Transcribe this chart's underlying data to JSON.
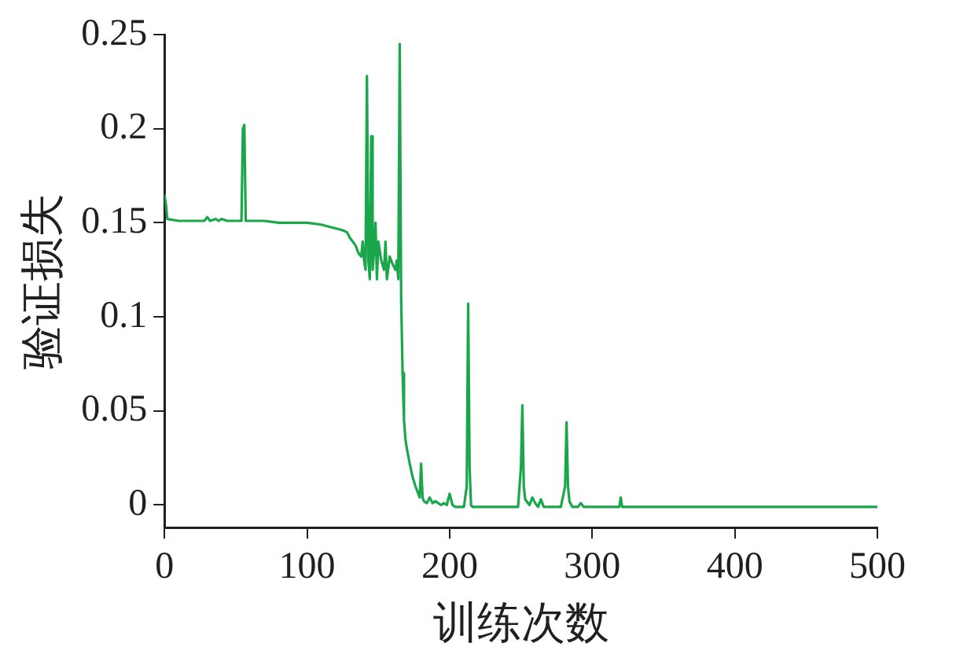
{
  "chart_data": {
    "type": "line",
    "xlabel": "训练次数",
    "ylabel": "验证损失",
    "xlim": [
      0,
      500
    ],
    "xticks": [
      0,
      100,
      200,
      300,
      400,
      500
    ],
    "ylim": [
      -0.012,
      0.25
    ],
    "yticks": [
      0,
      0.05,
      0.1,
      0.15,
      0.2,
      0.25
    ],
    "grid": false,
    "legend": false,
    "marker": "none",
    "line_style": "solid",
    "series": [
      {
        "color": "#1aa64a",
        "x": [
          0,
          1,
          2,
          10,
          20,
          28,
          30,
          32,
          36,
          38,
          40,
          44,
          50,
          54,
          55,
          56,
          57,
          60,
          70,
          80,
          90,
          100,
          110,
          115,
          120,
          125,
          128,
          130,
          132,
          134,
          136,
          138,
          139,
          140,
          141,
          142,
          143,
          144,
          145,
          146,
          147,
          148,
          149,
          150,
          152,
          154,
          155,
          156,
          158,
          160,
          162,
          163,
          164,
          165,
          166,
          167,
          168,
          169,
          170,
          172,
          174,
          176,
          178,
          179,
          180,
          181,
          182,
          184,
          186,
          188,
          190,
          192,
          194,
          196,
          198,
          200,
          202,
          204,
          210,
          212,
          213,
          214,
          215,
          216,
          220,
          230,
          240,
          248,
          250,
          251,
          252,
          253,
          256,
          258,
          260,
          262,
          264,
          266,
          270,
          278,
          281,
          282,
          283,
          284,
          286,
          290,
          292,
          294,
          296,
          300,
          310,
          319,
          320,
          321,
          322,
          330,
          400,
          500
        ],
        "values": [
          0.165,
          0.16,
          0.152,
          0.151,
          0.151,
          0.151,
          0.153,
          0.151,
          0.152,
          0.151,
          0.152,
          0.151,
          0.151,
          0.151,
          0.2,
          0.202,
          0.151,
          0.151,
          0.151,
          0.15,
          0.15,
          0.15,
          0.149,
          0.148,
          0.147,
          0.146,
          0.145,
          0.142,
          0.14,
          0.138,
          0.134,
          0.132,
          0.14,
          0.13,
          0.125,
          0.228,
          0.13,
          0.12,
          0.196,
          0.125,
          0.135,
          0.15,
          0.12,
          0.14,
          0.13,
          0.125,
          0.14,
          0.12,
          0.132,
          0.128,
          0.125,
          0.13,
          0.12,
          0.245,
          0.11,
          0.07,
          0.045,
          0.035,
          0.03,
          0.022,
          0.015,
          0.01,
          0.006,
          0.004,
          0.022,
          0.004,
          0.002,
          0.001,
          0.004,
          0.001,
          0.002,
          0.001,
          0.0,
          0.001,
          0.0,
          0.006,
          0.0,
          -0.001,
          -0.001,
          0.01,
          0.107,
          0.02,
          0.0,
          -0.001,
          -0.001,
          -0.001,
          -0.001,
          -0.001,
          0.02,
          0.053,
          0.01,
          0.003,
          0.0,
          0.004,
          0.001,
          -0.001,
          0.003,
          -0.001,
          -0.001,
          -0.001,
          0.01,
          0.044,
          0.01,
          0.002,
          -0.001,
          -0.001,
          0.001,
          -0.001,
          -0.001,
          -0.001,
          -0.001,
          -0.001,
          0.004,
          -0.001,
          -0.001,
          -0.001,
          -0.001,
          -0.001
        ]
      }
    ]
  }
}
